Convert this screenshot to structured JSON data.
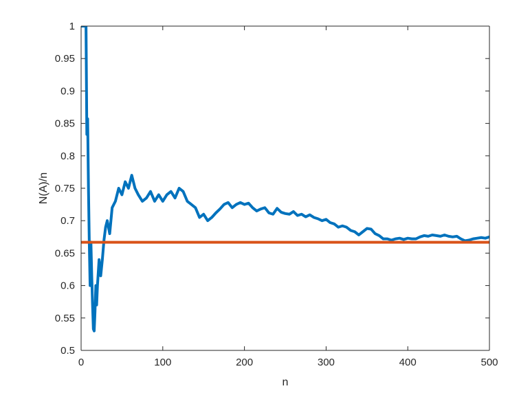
{
  "chart_data": {
    "type": "line",
    "title": "",
    "xlabel": "n",
    "ylabel": "N(A)/n",
    "xlim": [
      0,
      500
    ],
    "ylim": [
      0.5,
      1
    ],
    "x_ticks": [
      0,
      100,
      200,
      300,
      400,
      500
    ],
    "x_tick_labels": [
      "0",
      "100",
      "200",
      "300",
      "400",
      "500"
    ],
    "y_ticks": [
      0.5,
      0.55,
      0.6,
      0.65,
      0.7,
      0.75,
      0.8,
      0.85,
      0.9,
      0.95,
      1
    ],
    "y_tick_labels": [
      "0.5",
      "0.55",
      "0.6",
      "0.65",
      "0.7",
      "0.75",
      "0.8",
      "0.85",
      "0.9",
      "0.95",
      "1"
    ],
    "grid": false,
    "legend": "none",
    "series": [
      {
        "color": "#0072BD",
        "x": [
          1,
          2,
          3,
          4,
          5,
          6,
          7,
          8,
          9,
          10,
          11,
          12,
          13,
          14,
          15,
          16,
          17,
          18,
          19,
          20,
          22,
          24,
          26,
          28,
          30,
          32,
          35,
          38,
          42,
          46,
          50,
          54,
          58,
          62,
          66,
          70,
          75,
          80,
          85,
          90,
          95,
          100,
          105,
          110,
          115,
          120,
          125,
          130,
          135,
          140,
          145,
          150,
          155,
          160,
          165,
          170,
          175,
          180,
          185,
          190,
          195,
          200,
          205,
          210,
          215,
          220,
          225,
          230,
          235,
          240,
          245,
          250,
          255,
          260,
          265,
          270,
          275,
          280,
          285,
          290,
          295,
          300,
          305,
          310,
          315,
          320,
          325,
          330,
          335,
          340,
          345,
          350,
          355,
          360,
          365,
          370,
          375,
          380,
          385,
          390,
          395,
          400,
          405,
          410,
          415,
          420,
          425,
          430,
          435,
          440,
          445,
          450,
          455,
          460,
          465,
          470,
          475,
          480,
          485,
          490,
          495,
          500
        ],
        "values": [
          1,
          1,
          1,
          1,
          1,
          1,
          0.833,
          0.857,
          0.75,
          0.667,
          0.6,
          0.667,
          0.615,
          0.571,
          0.533,
          0.53,
          0.56,
          0.6,
          0.57,
          0.6,
          0.64,
          0.615,
          0.64,
          0.67,
          0.69,
          0.7,
          0.68,
          0.72,
          0.73,
          0.75,
          0.74,
          0.76,
          0.75,
          0.77,
          0.75,
          0.74,
          0.73,
          0.735,
          0.745,
          0.73,
          0.74,
          0.73,
          0.74,
          0.745,
          0.735,
          0.75,
          0.745,
          0.73,
          0.725,
          0.72,
          0.705,
          0.71,
          0.7,
          0.705,
          0.712,
          0.718,
          0.725,
          0.728,
          0.72,
          0.725,
          0.728,
          0.725,
          0.727,
          0.72,
          0.715,
          0.718,
          0.72,
          0.712,
          0.71,
          0.719,
          0.713,
          0.711,
          0.71,
          0.714,
          0.708,
          0.71,
          0.706,
          0.709,
          0.705,
          0.703,
          0.7,
          0.702,
          0.697,
          0.695,
          0.69,
          0.692,
          0.69,
          0.685,
          0.683,
          0.678,
          0.683,
          0.688,
          0.687,
          0.68,
          0.677,
          0.672,
          0.672,
          0.67,
          0.672,
          0.673,
          0.671,
          0.673,
          0.672,
          0.672,
          0.675,
          0.677,
          0.676,
          0.678,
          0.677,
          0.676,
          0.678,
          0.676,
          0.675,
          0.676,
          0.672,
          0.669,
          0.67,
          0.672,
          0.673,
          0.674,
          0.673,
          0.675
        ]
      },
      {
        "color": "#D95319",
        "x": [
          0,
          500
        ],
        "values": [
          0.6667,
          0.6667
        ]
      }
    ]
  }
}
